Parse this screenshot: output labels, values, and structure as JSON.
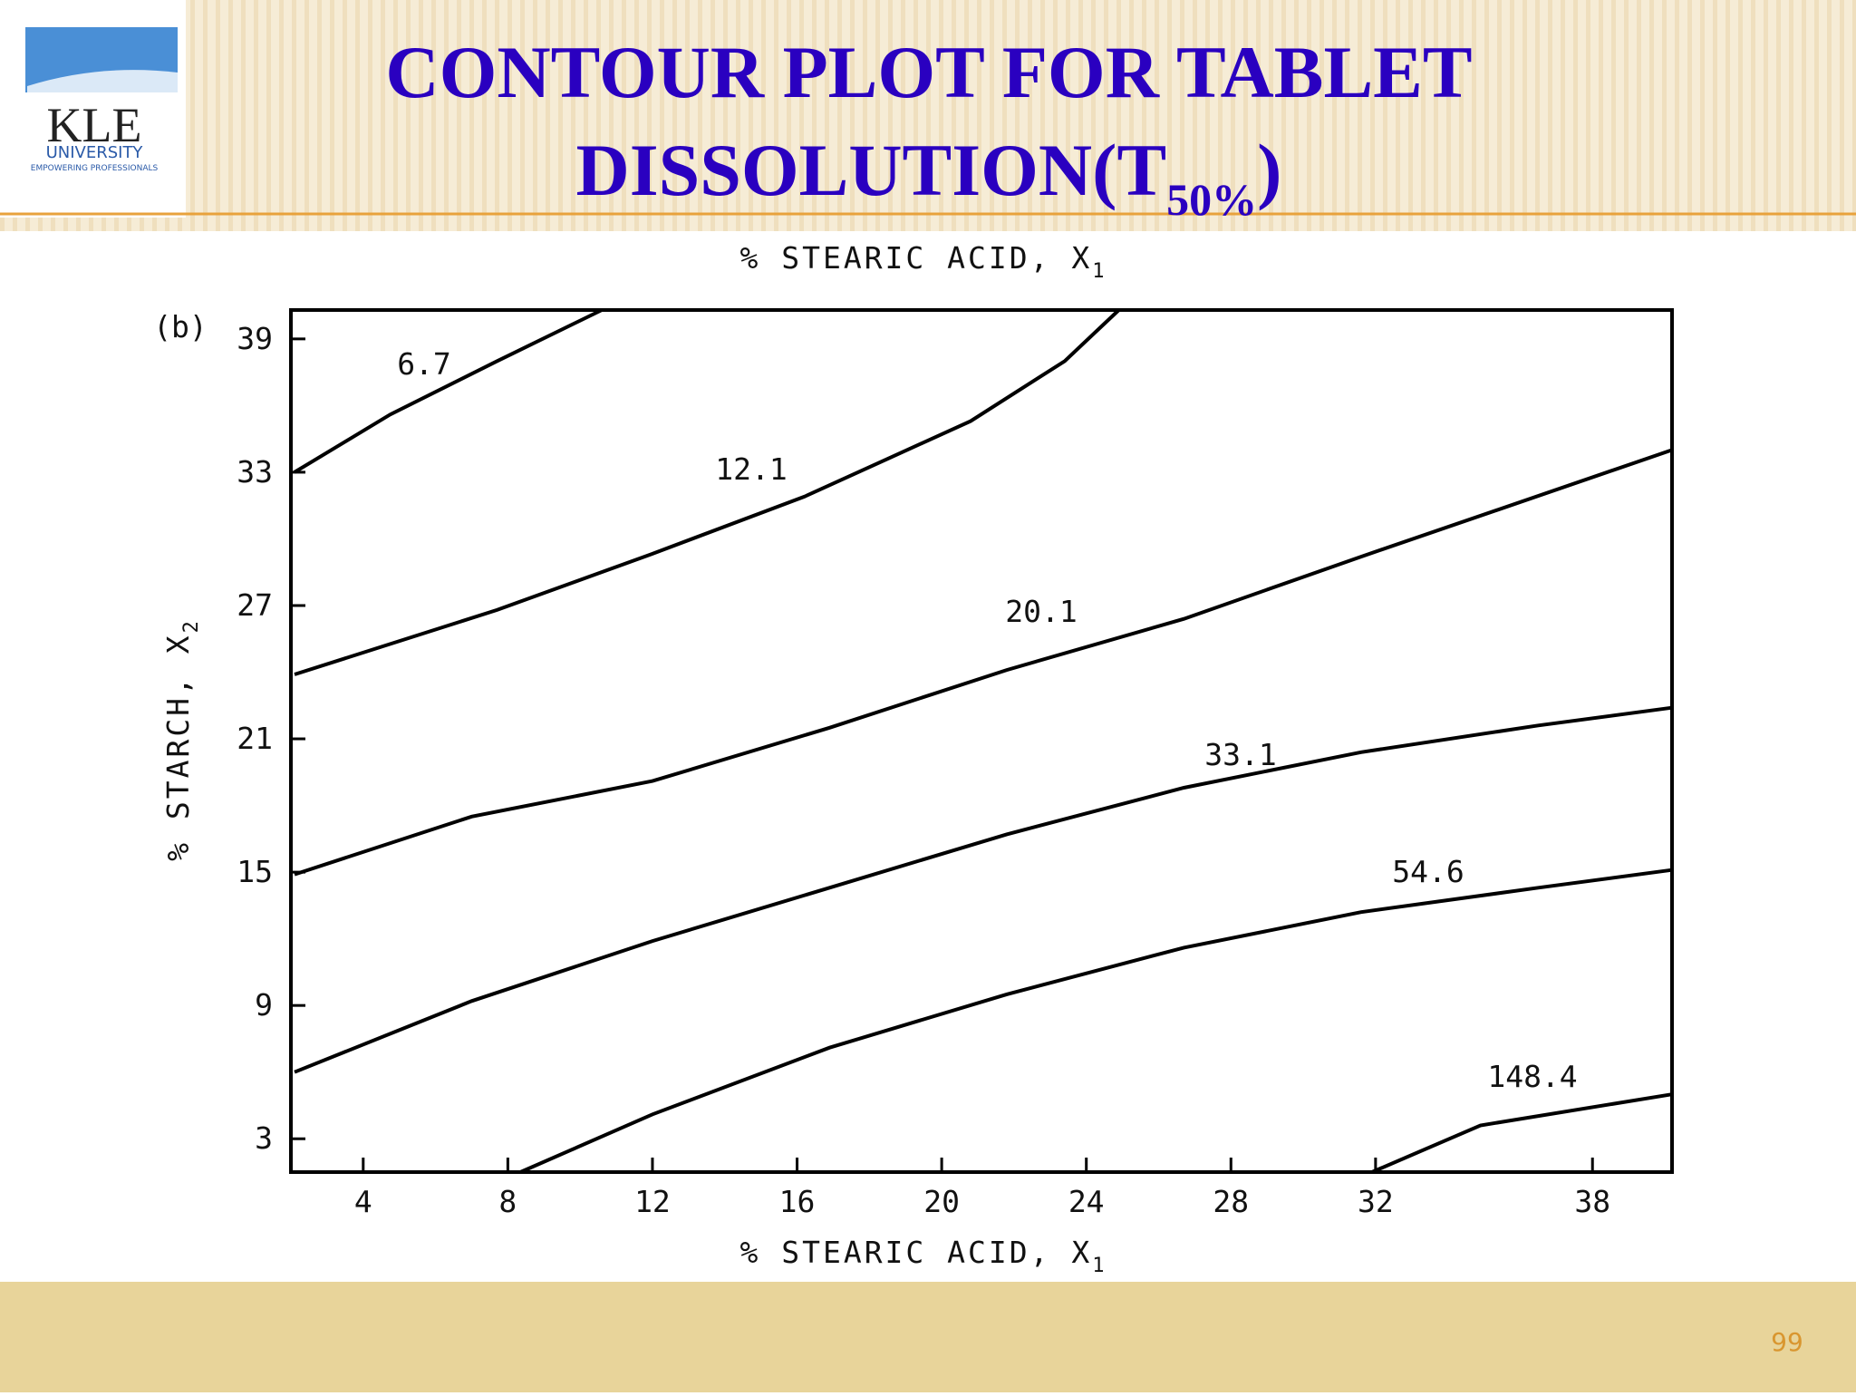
{
  "slide": {
    "logo": [
      "KLE",
      "UNIVERSITY",
      "EMPOWERING PROFESSIONALS"
    ],
    "title_line1": "CONTOUR PLOT FOR TABLET",
    "title_line2": "DISSOLUTION(T",
    "title_sub": "50%",
    "title_end": ")",
    "page_number": "99"
  },
  "chart_data": {
    "type": "contour",
    "panel_label": "(b)",
    "x_label": "% STEARIC ACID, X",
    "x_label_sub": "1",
    "x_label_top": "% STEARIC ACID, X",
    "x_label_top_sub": "1",
    "y_label": "% STARCH, X",
    "y_label_sub": "2",
    "xlim": [
      2,
      40.2
    ],
    "ylim": [
      1.5,
      40.3
    ],
    "xticks": [
      4,
      8,
      12,
      16,
      20,
      24,
      28,
      32,
      38
    ],
    "yticks": [
      3,
      9,
      15,
      21,
      27,
      33,
      39
    ],
    "color": "#000000",
    "series": [
      {
        "name": "6.7",
        "x": [
          2.1,
          4.75,
          7.7,
          10.6
        ],
        "y": [
          33.0,
          35.6,
          38.0,
          40.3
        ]
      },
      {
        "name": "12.1",
        "x": [
          2.1,
          7.7,
          11.95,
          16.2,
          20.8,
          23.4,
          24.9
        ],
        "y": [
          23.9,
          26.8,
          29.3,
          31.9,
          35.3,
          38.0,
          40.3
        ]
      },
      {
        "name": "20.1",
        "x": [
          2.1,
          7.0,
          12.0,
          16.9,
          21.8,
          26.7,
          31.6,
          40.2
        ],
        "y": [
          14.9,
          17.5,
          19.1,
          21.5,
          24.1,
          26.4,
          29.2,
          34.0
        ]
      },
      {
        "name": "33.1",
        "x": [
          2.1,
          7.0,
          12.0,
          16.9,
          21.8,
          26.7,
          31.6,
          36.5,
          40.2
        ],
        "y": [
          6.0,
          9.2,
          11.9,
          14.3,
          16.7,
          18.8,
          20.4,
          21.6,
          22.4
        ]
      },
      {
        "name": "54.6",
        "x": [
          8.35,
          12.0,
          16.9,
          21.8,
          26.7,
          31.6,
          36.5,
          40.2
        ],
        "y": [
          1.5,
          4.1,
          7.1,
          9.5,
          11.6,
          13.2,
          14.3,
          15.1
        ]
      },
      {
        "name": "148.4",
        "x": [
          31.9,
          34.9,
          40.2
        ],
        "y": [
          1.5,
          3.6,
          5.0
        ]
      }
    ]
  }
}
